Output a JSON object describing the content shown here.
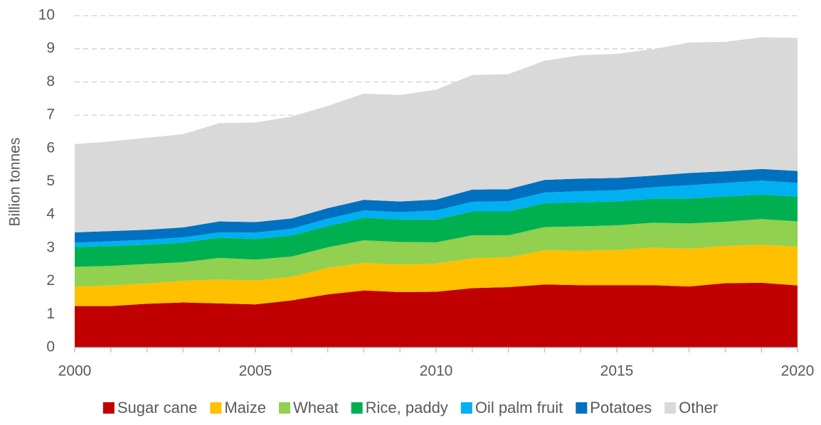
{
  "chart_data": {
    "type": "stacked_area",
    "y_label": "Billion tonnes",
    "x": [
      2000,
      2001,
      2002,
      2003,
      2004,
      2005,
      2006,
      2007,
      2008,
      2009,
      2010,
      2011,
      2012,
      2013,
      2014,
      2015,
      2016,
      2017,
      2018,
      2019,
      2020
    ],
    "xlim": [
      2000,
      2020
    ],
    "xticks": [
      2000,
      2005,
      2010,
      2015,
      2020
    ],
    "ylim": [
      0,
      10
    ],
    "yticks": [
      0,
      1,
      2,
      3,
      4,
      5,
      6,
      7,
      8,
      9,
      10
    ],
    "grid": true,
    "legend": "bottom",
    "series": [
      {
        "name": "Sugar cane",
        "color": "#c00000",
        "values": [
          1.25,
          1.25,
          1.32,
          1.36,
          1.33,
          1.3,
          1.42,
          1.6,
          1.72,
          1.67,
          1.68,
          1.79,
          1.82,
          1.9,
          1.88,
          1.88,
          1.88,
          1.84,
          1.94,
          1.95,
          1.87
        ]
      },
      {
        "name": "Maize",
        "color": "#ffc000",
        "values": [
          0.59,
          0.62,
          0.61,
          0.65,
          0.72,
          0.72,
          0.71,
          0.8,
          0.83,
          0.83,
          0.85,
          0.9,
          0.9,
          1.03,
          1.04,
          1.06,
          1.13,
          1.14,
          1.12,
          1.15,
          1.17
        ]
      },
      {
        "name": "Wheat",
        "color": "#92d050",
        "values": [
          0.59,
          0.59,
          0.59,
          0.56,
          0.65,
          0.63,
          0.61,
          0.62,
          0.68,
          0.68,
          0.64,
          0.69,
          0.66,
          0.7,
          0.73,
          0.74,
          0.75,
          0.76,
          0.73,
          0.77,
          0.76
        ]
      },
      {
        "name": "Rice, paddy",
        "color": "#00b050",
        "values": [
          0.6,
          0.6,
          0.58,
          0.59,
          0.61,
          0.62,
          0.64,
          0.64,
          0.68,
          0.68,
          0.69,
          0.72,
          0.72,
          0.72,
          0.73,
          0.72,
          0.73,
          0.75,
          0.76,
          0.74,
          0.75
        ]
      },
      {
        "name": "Oil palm fruit",
        "color": "#00b0f0",
        "values": [
          0.13,
          0.14,
          0.15,
          0.16,
          0.16,
          0.19,
          0.2,
          0.22,
          0.22,
          0.22,
          0.27,
          0.29,
          0.31,
          0.32,
          0.33,
          0.34,
          0.34,
          0.4,
          0.41,
          0.42,
          0.41
        ]
      },
      {
        "name": "Potatoes",
        "color": "#0070c0",
        "values": [
          0.31,
          0.31,
          0.3,
          0.3,
          0.33,
          0.32,
          0.31,
          0.32,
          0.32,
          0.32,
          0.33,
          0.37,
          0.36,
          0.38,
          0.38,
          0.37,
          0.35,
          0.37,
          0.35,
          0.35,
          0.36
        ]
      },
      {
        "name": "Other",
        "color": "#d9d9d9",
        "values": [
          2.66,
          2.7,
          2.77,
          2.81,
          2.96,
          3.0,
          3.07,
          3.08,
          3.2,
          3.21,
          3.31,
          3.45,
          3.47,
          3.59,
          3.72,
          3.74,
          3.81,
          3.93,
          3.9,
          3.97,
          4.01
        ]
      }
    ]
  }
}
